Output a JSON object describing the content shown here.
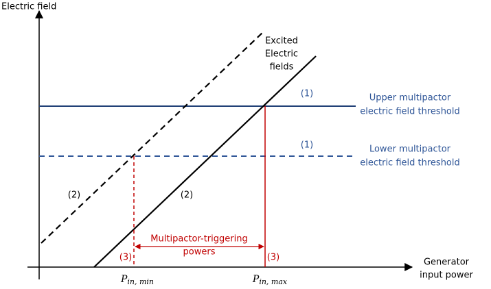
{
  "axes": {
    "y_label": "Electric field",
    "x_label": [
      "Generator",
      "input power"
    ]
  },
  "curves": {
    "label": [
      "Excited",
      "Electric",
      "fields"
    ],
    "markers": [
      "(2)",
      "(2)"
    ]
  },
  "thresholds": [
    {
      "marker": "(1)",
      "label": [
        "Upper multipactor",
        "electric field threshold"
      ]
    },
    {
      "marker": "(1)",
      "label": [
        "Lower multipactor",
        "electric field threshold"
      ]
    }
  ],
  "range": {
    "label": [
      "Multipactor-triggering",
      "powers"
    ],
    "markers": [
      "(3)",
      "(3)"
    ]
  },
  "powers": [
    {
      "symbol": "P",
      "subscript": "in, min"
    },
    {
      "symbol": "P",
      "subscript": "in, max"
    }
  ]
}
